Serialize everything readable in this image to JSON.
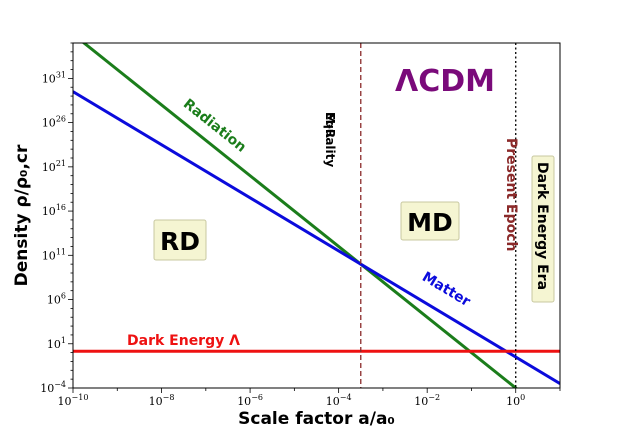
{
  "chart_data": {
    "type": "line",
    "title": "ΛCDM",
    "xscale": "log",
    "yscale": "log",
    "xlabel": "Scale factor a/a₀",
    "ylabel": "Density ρ/ρ₀,cr",
    "xlim_log10": [
      -10,
      1
    ],
    "ylim_log10": [
      -4,
      35
    ],
    "x_ticks": [
      {
        "exp": -10,
        "text": "−10"
      },
      {
        "exp": -8,
        "text": "−8"
      },
      {
        "exp": -6,
        "text": "−6"
      },
      {
        "exp": -4,
        "text": "−4"
      },
      {
        "exp": -2,
        "text": "−2"
      },
      {
        "exp": 0,
        "text": "0"
      }
    ],
    "y_ticks": [
      {
        "exp": -4,
        "text": "−4"
      },
      {
        "exp": 1,
        "text": "1"
      },
      {
        "exp": 6,
        "text": "6"
      },
      {
        "exp": 11,
        "text": "11"
      },
      {
        "exp": 16,
        "text": "16"
      },
      {
        "exp": 21,
        "text": "21"
      },
      {
        "exp": 26,
        "text": "26"
      },
      {
        "exp": 31,
        "text": "31"
      }
    ],
    "tick_base": "10",
    "series": [
      {
        "name": "Radiation",
        "color": "#1b7d1b",
        "log_density_at_a0": -4.0,
        "slope": -4
      },
      {
        "name": "Matter",
        "color": "#0b0bdc",
        "log_density_at_a0": -0.5,
        "slope": -3
      },
      {
        "name": "Dark Energy Λ",
        "color": "#ee1111",
        "log_density_at_a0": 0.15,
        "slope": 0
      }
    ],
    "vlines": [
      {
        "name": "M-R Equality",
        "lines": [
          "M-R",
          "Equality"
        ],
        "log_a": -3.5,
        "color": "#8b2a2a",
        "style": "dashed"
      },
      {
        "name": "Present Epoch",
        "lines": [
          "Present Epoch"
        ],
        "log_a": 0,
        "color": "#000000",
        "style": "dotted"
      }
    ],
    "annotations": {
      "present_epoch": "Present Epoch",
      "dark_energy_era": "Dark Energy Era",
      "rd": "RD",
      "md": "MD"
    },
    "colors": {
      "title": "#7a0a7a",
      "present_epoch": "#8b2a2a",
      "box_fill": "#f5f5d2",
      "box_stroke": "#c8c8a0"
    }
  }
}
